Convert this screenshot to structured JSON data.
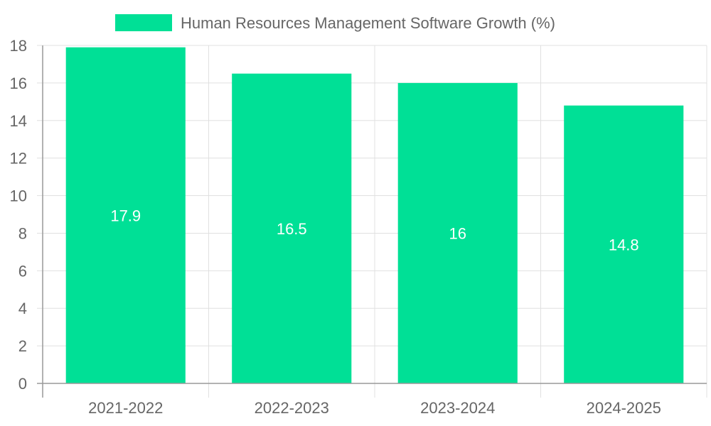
{
  "colors": {
    "bar": "#00e096",
    "grid": "#e0e0e0",
    "axis": "#999999",
    "tick_text": "#666666",
    "data_label": "#ffffff",
    "background": "#ffffff"
  },
  "chart_data": {
    "type": "bar",
    "title": "",
    "xlabel": "",
    "ylabel": "",
    "categories": [
      "2021-2022",
      "2022-2023",
      "2023-2024",
      "2024-2025"
    ],
    "series": [
      {
        "name": "Human Resources Management Software Growth (%)",
        "values": [
          17.9,
          16.5,
          16,
          14.8
        ]
      }
    ],
    "data_labels": [
      "17.9",
      "16.5",
      "16",
      "14.8"
    ],
    "ylim": [
      0,
      18
    ],
    "y_ticks": [
      0,
      2,
      4,
      6,
      8,
      10,
      12,
      14,
      16,
      18
    ],
    "grid": true,
    "legend": {
      "position": "top-center"
    }
  }
}
